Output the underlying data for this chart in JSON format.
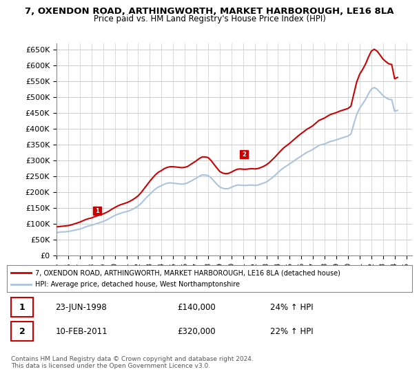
{
  "title_line1": "7, OXENDON ROAD, ARTHINGWORTH, MARKET HARBOROUGH, LE16 8LA",
  "title_line2": "Price paid vs. HM Land Registry's House Price Index (HPI)",
  "ylabel": "",
  "xlabel": "",
  "ylim": [
    0,
    670000
  ],
  "yticks": [
    0,
    50000,
    100000,
    150000,
    200000,
    250000,
    300000,
    350000,
    400000,
    450000,
    500000,
    550000,
    600000,
    650000
  ],
  "background_color": "#ffffff",
  "plot_bg_color": "#ffffff",
  "grid_color": "#cccccc",
  "hpi_color": "#aac4e0",
  "price_color": "#cc0000",
  "legend_label_price": "7, OXENDON ROAD, ARTHINGWORTH, MARKET HARBOROUGH, LE16 8LA (detached house)",
  "legend_label_hpi": "HPI: Average price, detached house, West Northamptonshire",
  "transaction1_label": "1",
  "transaction1_date": "23-JUN-1998",
  "transaction1_price": "£140,000",
  "transaction1_hpi": "24% ↑ HPI",
  "transaction2_label": "2",
  "transaction2_date": "10-FEB-2011",
  "transaction2_price": "£320,000",
  "transaction2_hpi": "22% ↑ HPI",
  "footnote": "Contains HM Land Registry data © Crown copyright and database right 2024.\nThis data is licensed under the Open Government Licence v3.0.",
  "hpi_x": [
    1995.0,
    1995.25,
    1995.5,
    1995.75,
    1996.0,
    1996.25,
    1996.5,
    1996.75,
    1997.0,
    1997.25,
    1997.5,
    1997.75,
    1998.0,
    1998.25,
    1998.5,
    1998.75,
    1999.0,
    1999.25,
    1999.5,
    1999.75,
    2000.0,
    2000.25,
    2000.5,
    2000.75,
    2001.0,
    2001.25,
    2001.5,
    2001.75,
    2002.0,
    2002.25,
    2002.5,
    2002.75,
    2003.0,
    2003.25,
    2003.5,
    2003.75,
    2004.0,
    2004.25,
    2004.5,
    2004.75,
    2005.0,
    2005.25,
    2005.5,
    2005.75,
    2006.0,
    2006.25,
    2006.5,
    2006.75,
    2007.0,
    2007.25,
    2007.5,
    2007.75,
    2008.0,
    2008.25,
    2008.5,
    2008.75,
    2009.0,
    2009.25,
    2009.5,
    2009.75,
    2010.0,
    2010.25,
    2010.5,
    2010.75,
    2011.0,
    2011.25,
    2011.5,
    2011.75,
    2012.0,
    2012.25,
    2012.5,
    2012.75,
    2013.0,
    2013.25,
    2013.5,
    2013.75,
    2014.0,
    2014.25,
    2014.5,
    2014.75,
    2015.0,
    2015.25,
    2015.5,
    2015.75,
    2016.0,
    2016.25,
    2016.5,
    2016.75,
    2017.0,
    2017.25,
    2017.5,
    2017.75,
    2018.0,
    2018.25,
    2018.5,
    2018.75,
    2019.0,
    2019.25,
    2019.5,
    2019.75,
    2020.0,
    2020.25,
    2020.5,
    2020.75,
    2021.0,
    2021.25,
    2021.5,
    2021.75,
    2022.0,
    2022.25,
    2022.5,
    2022.75,
    2023.0,
    2023.25,
    2023.5,
    2023.75,
    2024.0,
    2024.25
  ],
  "hpi_y": [
    72000,
    73000,
    74000,
    74500,
    75500,
    77000,
    79000,
    81000,
    83000,
    86000,
    90000,
    93000,
    95000,
    98000,
    101000,
    104000,
    107000,
    111000,
    116000,
    121000,
    126000,
    130000,
    133000,
    136000,
    138000,
    141000,
    145000,
    150000,
    156000,
    164000,
    174000,
    184000,
    193000,
    202000,
    210000,
    216000,
    220000,
    225000,
    228000,
    229000,
    228000,
    227000,
    226000,
    225000,
    226000,
    229000,
    234000,
    239000,
    244000,
    250000,
    254000,
    254000,
    252000,
    245000,
    235000,
    225000,
    216000,
    212000,
    210000,
    211000,
    215000,
    219000,
    222000,
    222000,
    221000,
    221000,
    222000,
    222000,
    221000,
    222000,
    225000,
    228000,
    232000,
    238000,
    245000,
    253000,
    262000,
    270000,
    277000,
    283000,
    289000,
    295000,
    302000,
    308000,
    314000,
    320000,
    326000,
    330000,
    335000,
    341000,
    347000,
    350000,
    352000,
    356000,
    360000,
    362000,
    365000,
    368000,
    371000,
    374000,
    377000,
    383000,
    415000,
    445000,
    465000,
    478000,
    492000,
    510000,
    525000,
    530000,
    525000,
    515000,
    505000,
    498000,
    493000,
    492000,
    455000,
    458000
  ],
  "price_x": [
    1995.0,
    1995.25,
    1995.5,
    1995.75,
    1996.0,
    1996.25,
    1996.5,
    1996.75,
    1997.0,
    1997.25,
    1997.5,
    1997.75,
    1998.0,
    1998.25,
    1998.5,
    1998.75,
    1999.0,
    1999.25,
    1999.5,
    1999.75,
    2000.0,
    2000.25,
    2000.5,
    2000.75,
    2001.0,
    2001.25,
    2001.5,
    2001.75,
    2002.0,
    2002.25,
    2002.5,
    2002.75,
    2003.0,
    2003.25,
    2003.5,
    2003.75,
    2004.0,
    2004.25,
    2004.5,
    2004.75,
    2005.0,
    2005.25,
    2005.5,
    2005.75,
    2006.0,
    2006.25,
    2006.5,
    2006.75,
    2007.0,
    2007.25,
    2007.5,
    2007.75,
    2008.0,
    2008.25,
    2008.5,
    2008.75,
    2009.0,
    2009.25,
    2009.5,
    2009.75,
    2010.0,
    2010.25,
    2010.5,
    2010.75,
    2011.0,
    2011.25,
    2011.5,
    2011.75,
    2012.0,
    2012.25,
    2012.5,
    2012.75,
    2013.0,
    2013.25,
    2013.5,
    2013.75,
    2014.0,
    2014.25,
    2014.5,
    2014.75,
    2015.0,
    2015.25,
    2015.5,
    2015.75,
    2016.0,
    2016.25,
    2016.5,
    2016.75,
    2017.0,
    2017.25,
    2017.5,
    2017.75,
    2018.0,
    2018.25,
    2018.5,
    2018.75,
    2019.0,
    2019.25,
    2019.5,
    2019.75,
    2020.0,
    2020.25,
    2020.5,
    2020.75,
    2021.0,
    2021.25,
    2021.5,
    2021.75,
    2022.0,
    2022.25,
    2022.5,
    2022.75,
    2023.0,
    2023.25,
    2023.5,
    2023.75,
    2024.0,
    2024.25
  ],
  "price_y": [
    90000,
    91000,
    92000,
    93000,
    94000,
    96000,
    99000,
    102000,
    105000,
    109000,
    113000,
    116000,
    118000,
    122000,
    125000,
    128000,
    131000,
    135000,
    140000,
    146000,
    151000,
    156000,
    160000,
    163000,
    166000,
    170000,
    175000,
    181000,
    188000,
    198000,
    210000,
    222000,
    234000,
    245000,
    255000,
    263000,
    268000,
    274000,
    278000,
    280000,
    280000,
    279000,
    278000,
    277000,
    278000,
    281000,
    287000,
    293000,
    299000,
    306000,
    311000,
    311000,
    309000,
    300000,
    288000,
    276000,
    265000,
    260000,
    258000,
    259000,
    263000,
    268000,
    272000,
    273000,
    272000,
    272000,
    273000,
    274000,
    273000,
    274000,
    277000,
    281000,
    286000,
    293000,
    302000,
    311000,
    321000,
    331000,
    340000,
    347000,
    354000,
    362000,
    370000,
    378000,
    385000,
    392000,
    399000,
    404000,
    410000,
    418000,
    426000,
    430000,
    434000,
    440000,
    445000,
    448000,
    451000,
    455000,
    458000,
    461000,
    464000,
    471000,
    510000,
    548000,
    572000,
    587000,
    604000,
    626000,
    645000,
    651000,
    645000,
    633000,
    620000,
    612000,
    605000,
    603000,
    558000,
    562000
  ],
  "transaction1_x": 1998.5,
  "transaction1_y": 140000,
  "transaction2_x": 2011.1,
  "transaction2_y": 320000,
  "xtick_years": [
    1995,
    1996,
    1997,
    1998,
    1999,
    2000,
    2001,
    2002,
    2003,
    2004,
    2005,
    2006,
    2007,
    2008,
    2009,
    2010,
    2011,
    2012,
    2013,
    2014,
    2015,
    2016,
    2017,
    2018,
    2019,
    2020,
    2021,
    2022,
    2023,
    2024,
    2025
  ]
}
